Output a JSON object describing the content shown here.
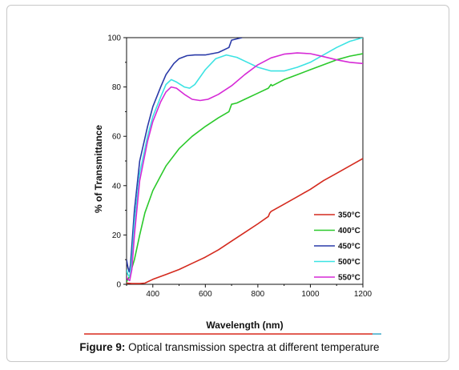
{
  "caption": {
    "label": "Figure 9:",
    "text": " Optical transmission spectra at different temperature"
  },
  "colors": {
    "separator_left": "#d9281c",
    "separator_right": "#3aa8c8"
  },
  "chart_data": {
    "type": "line",
    "title": "",
    "xlabel": "Wavelength (nm)",
    "ylabel": "% of Transmittance",
    "xlim": [
      300,
      1200
    ],
    "ylim": [
      0,
      100
    ],
    "xticks": [
      400,
      600,
      800,
      1000,
      1200
    ],
    "xtick_labels": [
      "400",
      "600",
      "800",
      "1000",
      "1200"
    ],
    "yticks": [
      0,
      20,
      40,
      60,
      80,
      100
    ],
    "ytick_labels": [
      "0",
      "20",
      "40",
      "60",
      "80",
      "100"
    ],
    "grid": false,
    "legend_position": "bottom-right",
    "series": [
      {
        "name": "350°C",
        "color": "#d42a1e",
        "points": [
          [
            300,
            0.5
          ],
          [
            320,
            0.3
          ],
          [
            350,
            0.3
          ],
          [
            370,
            0.5
          ],
          [
            400,
            2
          ],
          [
            450,
            4
          ],
          [
            500,
            6
          ],
          [
            550,
            8.5
          ],
          [
            600,
            11
          ],
          [
            650,
            14
          ],
          [
            700,
            17.5
          ],
          [
            750,
            21
          ],
          [
            800,
            24.5
          ],
          [
            840,
            27.5
          ],
          [
            845,
            28.8
          ],
          [
            850,
            29.5
          ],
          [
            900,
            32.5
          ],
          [
            950,
            35.5
          ],
          [
            1000,
            38.5
          ],
          [
            1050,
            42
          ],
          [
            1100,
            45
          ],
          [
            1150,
            48
          ],
          [
            1200,
            51
          ]
        ]
      },
      {
        "name": "400°C",
        "color": "#2bc92b",
        "points": [
          [
            300,
            1
          ],
          [
            310,
            3
          ],
          [
            330,
            10
          ],
          [
            350,
            20
          ],
          [
            370,
            29
          ],
          [
            400,
            38
          ],
          [
            430,
            44
          ],
          [
            450,
            48
          ],
          [
            500,
            55
          ],
          [
            550,
            60
          ],
          [
            600,
            64
          ],
          [
            650,
            67.5
          ],
          [
            690,
            70
          ],
          [
            700,
            73
          ],
          [
            720,
            73.5
          ],
          [
            750,
            75
          ],
          [
            800,
            77.5
          ],
          [
            840,
            79.5
          ],
          [
            850,
            81
          ],
          [
            855,
            80.5
          ],
          [
            900,
            83
          ],
          [
            950,
            85
          ],
          [
            1000,
            87
          ],
          [
            1050,
            89
          ],
          [
            1100,
            91
          ],
          [
            1150,
            92.5
          ],
          [
            1200,
            93.5
          ]
        ]
      },
      {
        "name": "450°C",
        "color": "#2a3aa8",
        "points": [
          [
            300,
            10
          ],
          [
            305,
            7
          ],
          [
            310,
            5
          ],
          [
            315,
            8
          ],
          [
            330,
            30
          ],
          [
            350,
            50
          ],
          [
            380,
            64
          ],
          [
            400,
            72
          ],
          [
            430,
            80
          ],
          [
            450,
            85
          ],
          [
            480,
            89.5
          ],
          [
            500,
            91.5
          ],
          [
            530,
            92.7
          ],
          [
            560,
            93
          ],
          [
            600,
            93
          ],
          [
            650,
            94
          ],
          [
            690,
            96
          ],
          [
            700,
            99
          ],
          [
            720,
            99.5
          ],
          [
            740,
            100
          ]
        ]
      },
      {
        "name": "500°C",
        "color": "#3ce3e3",
        "points": [
          [
            300,
            6
          ],
          [
            305,
            4
          ],
          [
            312,
            3
          ],
          [
            320,
            10
          ],
          [
            330,
            25
          ],
          [
            350,
            45
          ],
          [
            380,
            60
          ],
          [
            400,
            68
          ],
          [
            430,
            76
          ],
          [
            450,
            81
          ],
          [
            470,
            83
          ],
          [
            490,
            82
          ],
          [
            520,
            80
          ],
          [
            540,
            79.5
          ],
          [
            560,
            81
          ],
          [
            600,
            87
          ],
          [
            640,
            91.5
          ],
          [
            680,
            93
          ],
          [
            720,
            92
          ],
          [
            760,
            90
          ],
          [
            800,
            88
          ],
          [
            850,
            86.5
          ],
          [
            900,
            86.5
          ],
          [
            950,
            88
          ],
          [
            1000,
            90
          ],
          [
            1050,
            93
          ],
          [
            1100,
            96
          ],
          [
            1150,
            98.5
          ],
          [
            1200,
            100
          ]
        ]
      },
      {
        "name": "550°C",
        "color": "#d62ad6",
        "points": [
          [
            300,
            3
          ],
          [
            305,
            2
          ],
          [
            312,
            1.5
          ],
          [
            320,
            6
          ],
          [
            330,
            20
          ],
          [
            350,
            42
          ],
          [
            380,
            58
          ],
          [
            400,
            66
          ],
          [
            430,
            74
          ],
          [
            450,
            78
          ],
          [
            470,
            80
          ],
          [
            490,
            79.5
          ],
          [
            520,
            77
          ],
          [
            550,
            75
          ],
          [
            580,
            74.5
          ],
          [
            610,
            75
          ],
          [
            650,
            77
          ],
          [
            700,
            80.5
          ],
          [
            750,
            85
          ],
          [
            800,
            89
          ],
          [
            850,
            91.8
          ],
          [
            900,
            93.3
          ],
          [
            950,
            93.8
          ],
          [
            1000,
            93.5
          ],
          [
            1050,
            92.3
          ],
          [
            1100,
            91
          ],
          [
            1150,
            90
          ],
          [
            1200,
            89.5
          ]
        ]
      }
    ]
  }
}
